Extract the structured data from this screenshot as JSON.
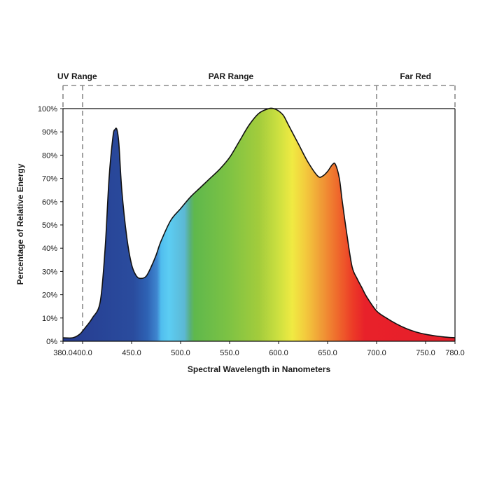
{
  "chart_data": {
    "type": "area",
    "xlabel": "Spectral Wavelength in Nanometers",
    "ylabel": "Percentage of Relative Energy",
    "xlim": [
      380,
      780
    ],
    "ylim": [
      0,
      100
    ],
    "x_ticks": [
      "380.0",
      "400.0",
      "450.0",
      "500.0",
      "550.0",
      "600.0",
      "650.0",
      "700.0",
      "750.0",
      "780.0"
    ],
    "x_tick_values": [
      380,
      400,
      450,
      500,
      550,
      600,
      650,
      700,
      750,
      780
    ],
    "y_ticks": [
      "0%",
      "10%",
      "20%",
      "30%",
      "40%",
      "50%",
      "60%",
      "70%",
      "80%",
      "90%",
      "100%"
    ],
    "y_tick_values": [
      0,
      10,
      20,
      30,
      40,
      50,
      60,
      70,
      80,
      90,
      100
    ],
    "ranges": [
      {
        "label": "UV Range",
        "start": 380,
        "end": 400
      },
      {
        "label": "PAR Range",
        "start": 400,
        "end": 700
      },
      {
        "label": "Far Red",
        "start": 700,
        "end": 780
      }
    ],
    "series": [
      {
        "x": [
          380,
          390,
          397,
          403,
          410,
          418,
          423,
          427,
          431,
          433,
          435,
          437,
          440,
          445,
          450,
          455,
          460,
          465,
          470,
          475,
          480,
          490,
          500,
          510,
          520,
          530,
          540,
          550,
          560,
          570,
          580,
          590,
          595,
          600,
          605,
          610,
          620,
          630,
          640,
          645,
          650,
          655,
          658,
          662,
          665,
          670,
          675,
          680,
          685,
          690,
          700,
          710,
          720,
          730,
          740,
          750,
          760,
          770,
          780
        ],
        "values": [
          1.5,
          1.5,
          3,
          6,
          10,
          17,
          40,
          70,
          88,
          91,
          91,
          85,
          65,
          45,
          33,
          28,
          27,
          28,
          32,
          37,
          43,
          52,
          57,
          62,
          66,
          70,
          74,
          79,
          86,
          93,
          98,
          100,
          100,
          99,
          97,
          93,
          85,
          77,
          71,
          71,
          73,
          76,
          76,
          70,
          60,
          45,
          32,
          27,
          23,
          19,
          13,
          10,
          7.5,
          5.5,
          4,
          3,
          2.3,
          1.8,
          1.5
        ]
      }
    ],
    "grid": false,
    "legend": false
  }
}
